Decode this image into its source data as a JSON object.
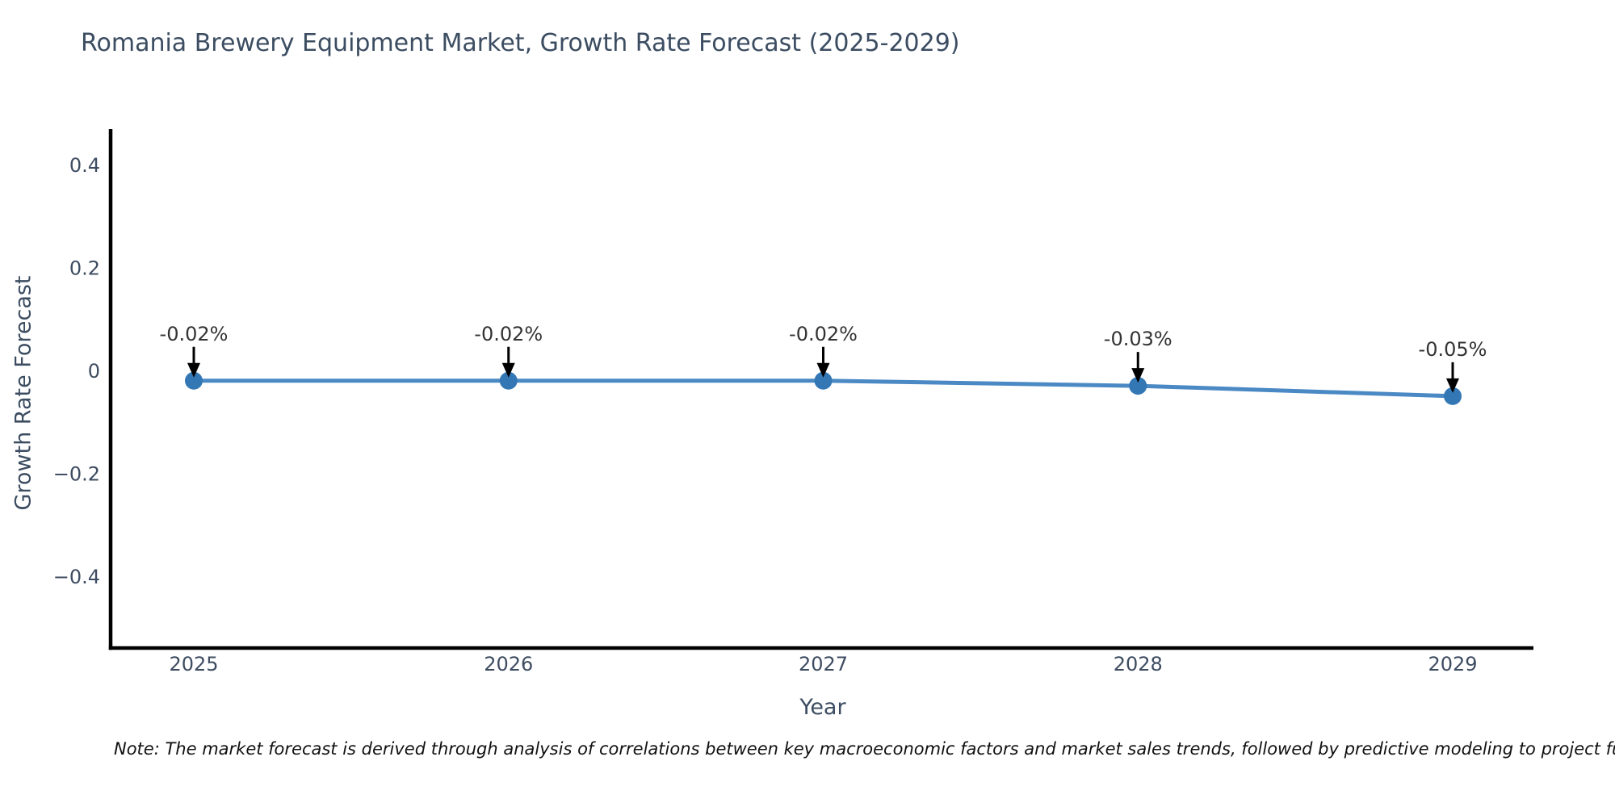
{
  "chart_data": {
    "type": "line",
    "title": "Romania Brewery Equipment Market, Growth Rate Forecast (2025-2029)",
    "xlabel": "Year",
    "ylabel": "Growth Rate Forecast",
    "categories": [
      "2025",
      "2026",
      "2027",
      "2028",
      "2029"
    ],
    "series": [
      {
        "name": "Growth Rate Forecast",
        "values": [
          -0.02,
          -0.02,
          -0.02,
          -0.03,
          -0.05
        ]
      }
    ],
    "point_labels": [
      "-0.02%",
      "-0.02%",
      "-0.02%",
      "-0.03%",
      "-0.05%"
    ],
    "ytick_values": [
      0.4,
      0.2,
      0,
      -0.2,
      -0.4
    ],
    "ytick_labels": [
      "0.4",
      "0.2",
      "0",
      "−0.2",
      "−0.4"
    ],
    "ylim": [
      -0.54,
      0.47
    ],
    "grid": false,
    "legend_position": "none",
    "note": "Note: The market forecast is derived through analysis of correlations between key macroeconomic factors and market sales trends, followed by predictive modeling to project future sales.",
    "colors": {
      "line": "#4a89c4",
      "marker": "#3377b4",
      "axis": "#000000",
      "tick_label": "#3e4c61",
      "heading": "#3c4d62",
      "annotation": "#333333",
      "note_text": "#111111",
      "background": "#ffffff"
    }
  }
}
